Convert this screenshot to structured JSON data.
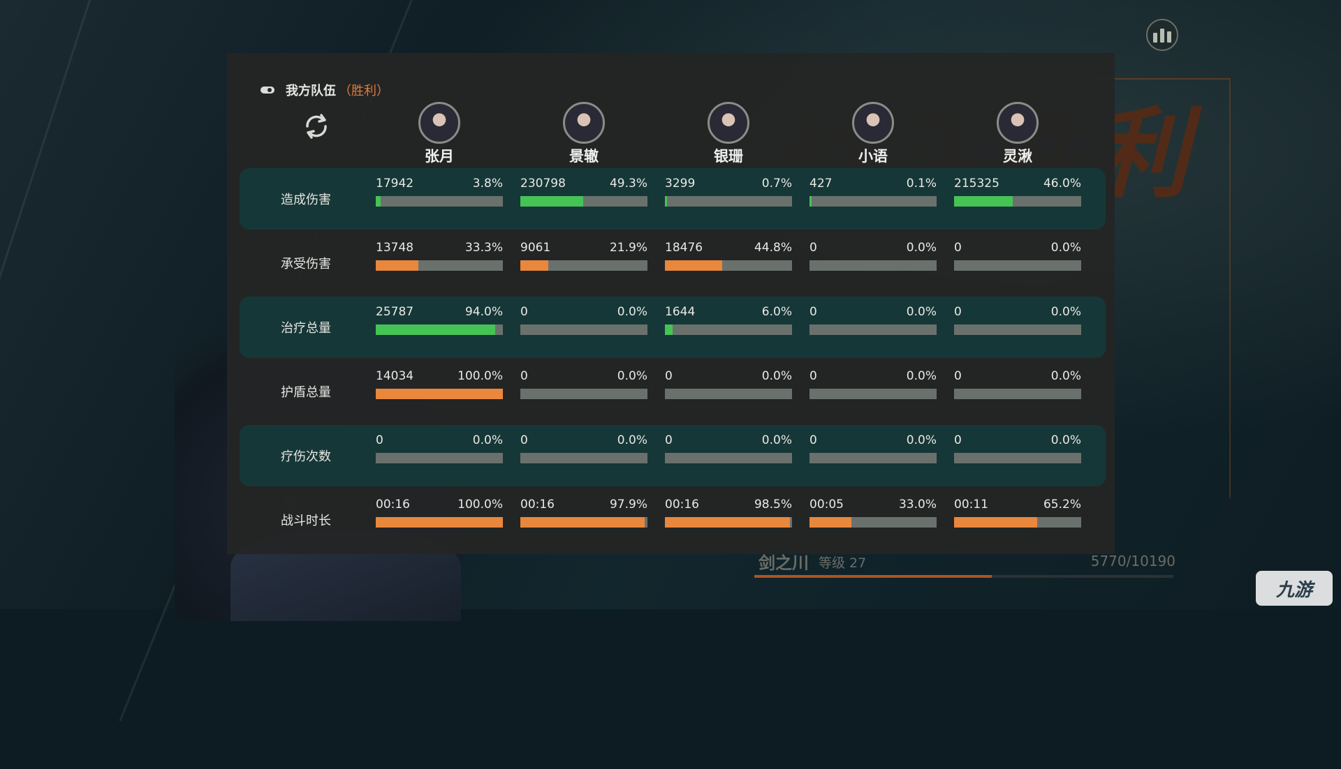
{
  "team_label": "我方队伍",
  "result_label": "（胜利）",
  "background_title": "战斗胜利",
  "colors": {
    "green": "#45c455",
    "orange": "#e9873c",
    "track": "#6a716d",
    "accent": "#e07a3a"
  },
  "heroes": [
    {
      "name": "张月"
    },
    {
      "name": "景辙"
    },
    {
      "name": "银珊"
    },
    {
      "name": "小语"
    },
    {
      "name": "灵湫"
    }
  ],
  "rows": [
    {
      "label": "造成伤害",
      "color": "green",
      "cells": [
        {
          "value": "17942",
          "pct": "3.8%",
          "fill": 0.038
        },
        {
          "value": "230798",
          "pct": "49.3%",
          "fill": 0.493
        },
        {
          "value": "3299",
          "pct": "0.7%",
          "fill": 0.007
        },
        {
          "value": "427",
          "pct": "0.1%",
          "fill": 0.001
        },
        {
          "value": "215325",
          "pct": "46.0%",
          "fill": 0.46
        }
      ]
    },
    {
      "label": "承受伤害",
      "color": "orange",
      "cells": [
        {
          "value": "13748",
          "pct": "33.3%",
          "fill": 0.333
        },
        {
          "value": "9061",
          "pct": "21.9%",
          "fill": 0.219
        },
        {
          "value": "18476",
          "pct": "44.8%",
          "fill": 0.448
        },
        {
          "value": "0",
          "pct": "0.0%",
          "fill": 0
        },
        {
          "value": "0",
          "pct": "0.0%",
          "fill": 0
        }
      ]
    },
    {
      "label": "治疗总量",
      "color": "green",
      "cells": [
        {
          "value": "25787",
          "pct": "94.0%",
          "fill": 0.94
        },
        {
          "value": "0",
          "pct": "0.0%",
          "fill": 0
        },
        {
          "value": "1644",
          "pct": "6.0%",
          "fill": 0.06
        },
        {
          "value": "0",
          "pct": "0.0%",
          "fill": 0
        },
        {
          "value": "0",
          "pct": "0.0%",
          "fill": 0
        }
      ]
    },
    {
      "label": "护盾总量",
      "color": "orange",
      "cells": [
        {
          "value": "14034",
          "pct": "100.0%",
          "fill": 1.0
        },
        {
          "value": "0",
          "pct": "0.0%",
          "fill": 0
        },
        {
          "value": "0",
          "pct": "0.0%",
          "fill": 0
        },
        {
          "value": "0",
          "pct": "0.0%",
          "fill": 0
        },
        {
          "value": "0",
          "pct": "0.0%",
          "fill": 0
        }
      ]
    },
    {
      "label": "疗伤次数",
      "color": "green",
      "cells": [
        {
          "value": "0",
          "pct": "0.0%",
          "fill": 0
        },
        {
          "value": "0",
          "pct": "0.0%",
          "fill": 0
        },
        {
          "value": "0",
          "pct": "0.0%",
          "fill": 0
        },
        {
          "value": "0",
          "pct": "0.0%",
          "fill": 0
        },
        {
          "value": "0",
          "pct": "0.0%",
          "fill": 0
        }
      ]
    },
    {
      "label": "战斗时长",
      "color": "orange",
      "cells": [
        {
          "value": "00:16",
          "pct": "100.0%",
          "fill": 1.0
        },
        {
          "value": "00:16",
          "pct": "97.9%",
          "fill": 0.979
        },
        {
          "value": "00:16",
          "pct": "98.5%",
          "fill": 0.985
        },
        {
          "value": "00:05",
          "pct": "33.0%",
          "fill": 0.33
        },
        {
          "value": "00:11",
          "pct": "65.2%",
          "fill": 0.652
        }
      ]
    }
  ],
  "footer": {
    "name": "剑之川",
    "level": "等级 27",
    "exp": "5770/10190",
    "exp_fill": 0.566
  },
  "watermark": "九游",
  "icons": {
    "stats": "bar-chart-icon",
    "switch": "refresh-icon",
    "toggle": "toggle-icon"
  }
}
